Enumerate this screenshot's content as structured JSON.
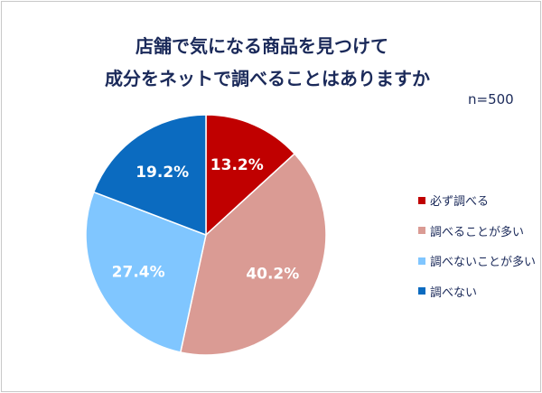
{
  "chart_data": {
    "type": "pie",
    "title": [
      "店舗で気になる商品を見つけて",
      "成分をネットで調べることはありますか"
    ],
    "note": "n=500",
    "categories": [
      "必ず調べる",
      "調べることが多い",
      "調べないことが多い",
      "調べない"
    ],
    "values": [
      13.2,
      40.2,
      27.4,
      19.2
    ],
    "labels": [
      "13.2%",
      "40.2%",
      "27.4%",
      "19.2%"
    ],
    "colors": [
      "#C00000",
      "#DA9B94",
      "#80C6FF",
      "#0B6BC0"
    ],
    "legend_position": "right"
  }
}
